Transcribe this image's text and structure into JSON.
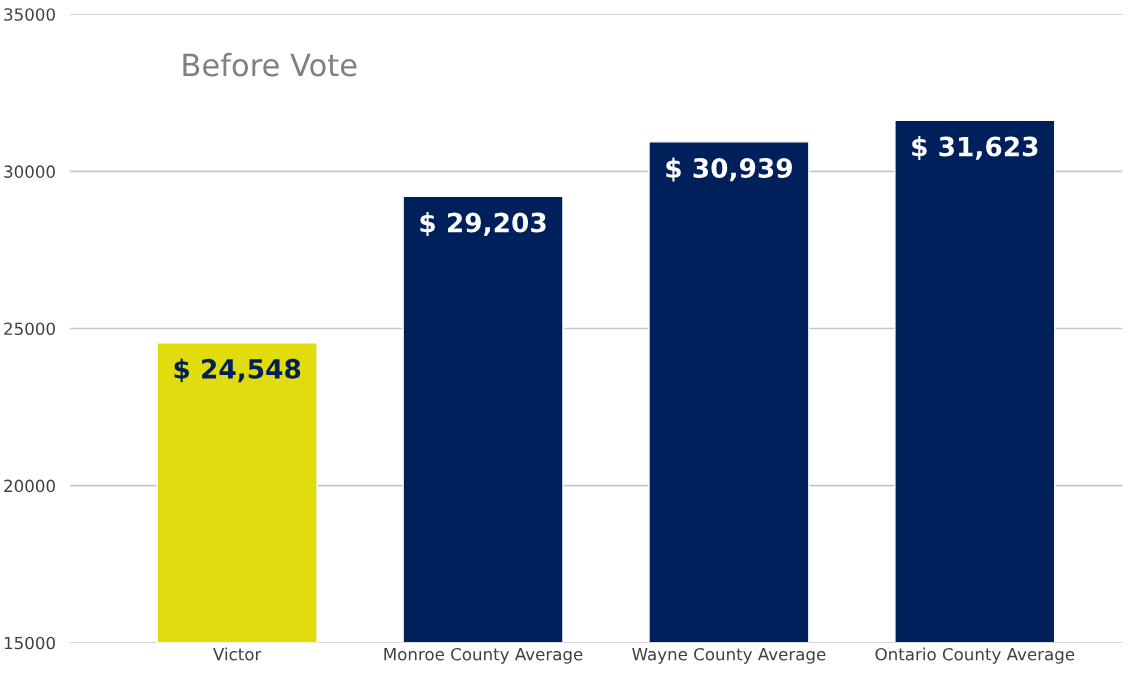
{
  "chart_data": {
    "type": "bar",
    "title": "Before Vote",
    "categories": [
      "Victor",
      "Monroe County Average",
      "Wayne County Average",
      "Ontario County Average"
    ],
    "values": [
      24548,
      29203,
      30939,
      31623
    ],
    "colors": [
      "#e0dc0e",
      "#00205b",
      "#00205b",
      "#00205b"
    ],
    "value_labels": [
      "$ 24,548",
      "$ 29,203",
      "$ 30,939",
      "$ 31,623"
    ],
    "ylim": [
      15000,
      35000
    ],
    "yticks": [
      15000,
      20000,
      25000,
      30000,
      35000
    ],
    "grid": "y"
  }
}
